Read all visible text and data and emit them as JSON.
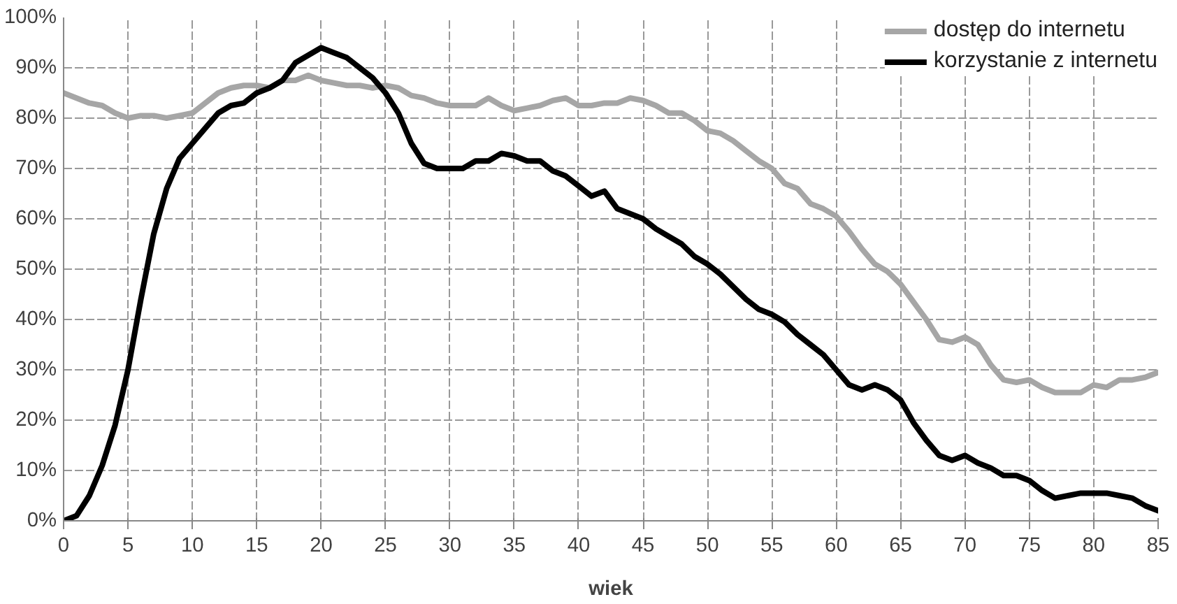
{
  "chart_data": {
    "type": "line",
    "xlabel": "wiek",
    "x": [
      0,
      1,
      2,
      3,
      4,
      5,
      6,
      7,
      8,
      9,
      10,
      11,
      12,
      13,
      14,
      15,
      16,
      17,
      18,
      19,
      20,
      21,
      22,
      23,
      24,
      25,
      26,
      27,
      28,
      29,
      30,
      31,
      32,
      33,
      34,
      35,
      36,
      37,
      38,
      39,
      40,
      41,
      42,
      43,
      44,
      45,
      46,
      47,
      48,
      49,
      50,
      51,
      52,
      53,
      54,
      55,
      56,
      57,
      58,
      59,
      60,
      61,
      62,
      63,
      64,
      65,
      66,
      67,
      68,
      69,
      70,
      71,
      72,
      73,
      74,
      75,
      76,
      77,
      78,
      79,
      80,
      81,
      82,
      83,
      84,
      85
    ],
    "series": [
      {
        "name": "dostęp do internetu",
        "color": "#a6a6a6",
        "values": [
          85,
          84,
          83,
          82.5,
          81,
          80,
          80.5,
          80.5,
          80,
          80.5,
          81,
          83,
          85,
          86,
          86.5,
          86.5,
          86,
          87.5,
          87.5,
          88.5,
          87.5,
          87,
          86.5,
          86.5,
          86,
          86.5,
          86,
          84.5,
          84,
          83,
          82.5,
          82.5,
          82.5,
          84,
          82.5,
          81.5,
          82,
          82.5,
          83.5,
          84,
          82.5,
          82.5,
          83,
          83,
          84,
          83.5,
          82.5,
          81,
          81,
          79.5,
          77.5,
          77,
          75.5,
          73.5,
          71.5,
          70,
          67,
          66,
          63,
          62,
          60.5,
          57.5,
          54,
          51,
          49.5,
          47,
          43.5,
          40,
          36,
          35.5,
          36.5,
          35,
          31,
          28,
          27.5,
          28,
          26.5,
          25.5,
          25.5,
          25.5,
          27,
          26.5,
          28,
          28,
          28.5,
          29.5
        ]
      },
      {
        "name": "korzystanie z internetu",
        "color": "#000000",
        "values": [
          0,
          1,
          5,
          11,
          19,
          30,
          44,
          57,
          66,
          72,
          75,
          78,
          81,
          82.5,
          83,
          85,
          86,
          87.5,
          91,
          92.5,
          94,
          93,
          92,
          90,
          88,
          85,
          81,
          75,
          71,
          70,
          70,
          70,
          71.5,
          71.5,
          73,
          72.5,
          71.5,
          71.5,
          69.5,
          68.5,
          66.5,
          64.5,
          65.5,
          62,
          61,
          60,
          58,
          56.5,
          55,
          52.5,
          51,
          49,
          46.5,
          44,
          42,
          41,
          39.5,
          37,
          35,
          33,
          30,
          27,
          26,
          27,
          26,
          24,
          19.5,
          16,
          13,
          12,
          13,
          11.5,
          10.5,
          9,
          9,
          8,
          6,
          4.5,
          5,
          5.5,
          5.5,
          5.5,
          5,
          4.5,
          3,
          2
        ]
      }
    ],
    "xlim": [
      0,
      85
    ],
    "xticks": [
      0,
      5,
      10,
      15,
      20,
      25,
      30,
      35,
      40,
      45,
      50,
      55,
      60,
      65,
      70,
      75,
      80,
      85
    ],
    "ylim": [
      0,
      100
    ],
    "yticks": [
      {
        "value": 0,
        "label": "0%"
      },
      {
        "value": 10,
        "label": "10%"
      },
      {
        "value": 20,
        "label": "20%"
      },
      {
        "value": 30,
        "label": "30%"
      },
      {
        "value": 40,
        "label": "40%"
      },
      {
        "value": 50,
        "label": "50%"
      },
      {
        "value": 60,
        "label": "60%"
      },
      {
        "value": 70,
        "label": "70%"
      },
      {
        "value": 80,
        "label": "80%"
      },
      {
        "value": 90,
        "label": "90%"
      },
      {
        "value": 100,
        "label": "100%"
      }
    ],
    "grid": true,
    "legend": "top right",
    "marker": "none",
    "line_style": "solid"
  }
}
